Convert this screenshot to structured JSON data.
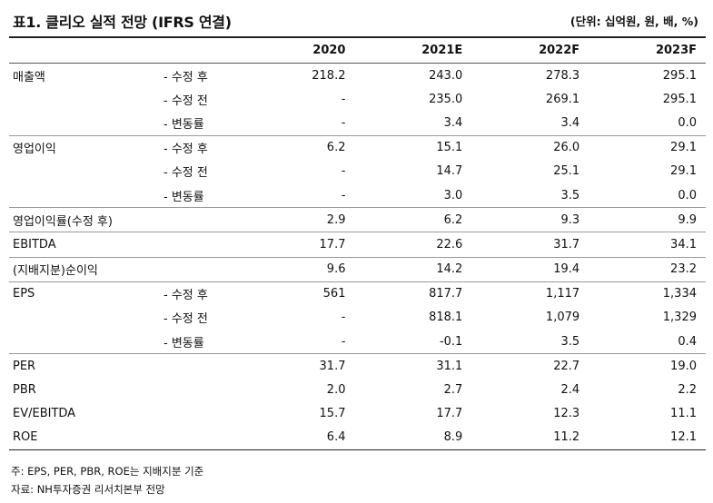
{
  "title": "표1. 클리오 실적 전망 (IFRS 연결)",
  "unit": "(단위: 십억원, 원, 배, %)",
  "columns": [
    "2020",
    "2021E",
    "2022F",
    "2023F"
  ],
  "rows": [
    {
      "label": "매출액",
      "sub": "- 수정 후",
      "values": [
        "218.2",
        "243.0",
        "278.3",
        "295.1"
      ]
    },
    {
      "label": "",
      "sub": "- 수정 전",
      "values": [
        "-",
        "235.0",
        "269.1",
        "295.1"
      ]
    },
    {
      "label": "",
      "sub": "- 변동률",
      "values": [
        "-",
        "3.4",
        "3.4",
        "0.0"
      ]
    },
    {
      "label": "영업이익",
      "sub": "- 수정 후",
      "values": [
        "6.2",
        "15.1",
        "26.0",
        "29.1"
      ]
    },
    {
      "label": "",
      "sub": "- 수정 전",
      "values": [
        "-",
        "14.7",
        "25.1",
        "29.1"
      ]
    },
    {
      "label": "",
      "sub": "- 변동률",
      "values": [
        "-",
        "3.0",
        "3.5",
        "0.0"
      ]
    },
    {
      "label": "영업이익률(수정 후)",
      "sub": "",
      "values": [
        "2.9",
        "6.2",
        "9.3",
        "9.9"
      ]
    },
    {
      "label": "EBITDA",
      "sub": "",
      "values": [
        "17.7",
        "22.6",
        "31.7",
        "34.1"
      ]
    },
    {
      "label": "(지배지분)순이익",
      "sub": "",
      "values": [
        "9.6",
        "14.2",
        "19.4",
        "23.2"
      ]
    },
    {
      "label": "EPS",
      "sub": "- 수정 후",
      "values": [
        "561",
        "817.7",
        "1,117",
        "1,334"
      ]
    },
    {
      "label": "",
      "sub": "- 수정 전",
      "values": [
        "-",
        "818.1",
        "1,079",
        "1,329"
      ]
    },
    {
      "label": "",
      "sub": "- 변동률",
      "values": [
        "-",
        "-0.1",
        "3.5",
        "0.4"
      ]
    },
    {
      "label": "PER",
      "sub": "",
      "values": [
        "31.7",
        "31.1",
        "22.7",
        "19.0"
      ]
    },
    {
      "label": "PBR",
      "sub": "",
      "values": [
        "2.0",
        "2.7",
        "2.4",
        "2.2"
      ]
    },
    {
      "label": "EV/EBITDA",
      "sub": "",
      "values": [
        "15.7",
        "17.7",
        "12.3",
        "11.1"
      ]
    },
    {
      "label": "ROE",
      "sub": "",
      "values": [
        "6.4",
        "8.9",
        "11.2",
        "12.1"
      ]
    }
  ],
  "notes": [
    "주: EPS, PER, PBR, ROE는 지배지분 기준",
    "자료: NH투자증권 리서치본부 전망"
  ]
}
